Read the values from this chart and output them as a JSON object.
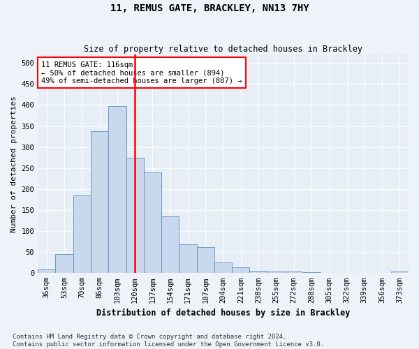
{
  "title": "11, REMUS GATE, BRACKLEY, NN13 7HY",
  "subtitle": "Size of property relative to detached houses in Brackley",
  "xlabel": "Distribution of detached houses by size in Brackley",
  "ylabel": "Number of detached properties",
  "categories": [
    "36sqm",
    "53sqm",
    "70sqm",
    "86sqm",
    "103sqm",
    "120sqm",
    "137sqm",
    "154sqm",
    "171sqm",
    "187sqm",
    "204sqm",
    "221sqm",
    "238sqm",
    "255sqm",
    "272sqm",
    "288sqm",
    "305sqm",
    "322sqm",
    "339sqm",
    "356sqm",
    "373sqm"
  ],
  "values": [
    8,
    46,
    185,
    338,
    398,
    275,
    240,
    135,
    68,
    62,
    25,
    13,
    6,
    4,
    3,
    2,
    1,
    1,
    0,
    0,
    4
  ],
  "bar_color": "#c8d8ed",
  "bar_edge_color": "#5a8fc0",
  "vline_color": "red",
  "annotation_title": "11 REMUS GATE: 116sqm",
  "annotation_line1": "← 50% of detached houses are smaller (894)",
  "annotation_line2": "49% of semi-detached houses are larger (887) →",
  "annotation_box_color": "white",
  "annotation_box_edge": "red",
  "footer_line1": "Contains HM Land Registry data © Crown copyright and database right 2024.",
  "footer_line2": "Contains public sector information licensed under the Open Government Licence v3.0.",
  "ylim": [
    0,
    520
  ],
  "background_color": "#eef3f9",
  "plot_bg_color": "#e8eef6",
  "title_fontsize": 10,
  "subtitle_fontsize": 8.5,
  "ylabel_fontsize": 8,
  "xlabel_fontsize": 8.5,
  "tick_fontsize": 7.5,
  "footer_fontsize": 6.5
}
